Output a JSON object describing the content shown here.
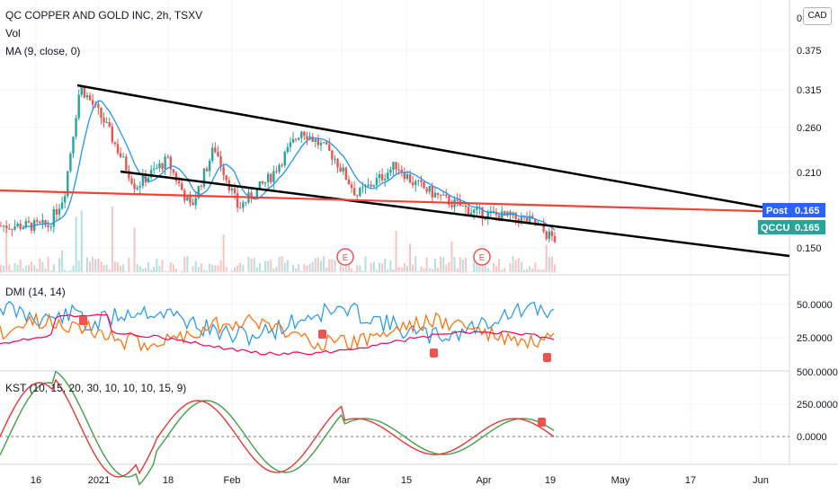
{
  "header": {
    "title": "QC COPPER AND GOLD INC, 2h, TSXV",
    "vol_label": "Vol",
    "ma_label": "MA (9, close, 0)",
    "currency": "CAD",
    "currency_partial_tick": "0."
  },
  "pane_labels": {
    "dmi": "DMI (14, 14)",
    "kst": "KST (10, 15, 20, 30, 10, 10, 10, 15, 9)"
  },
  "badges": {
    "post": {
      "label": "Post",
      "value": "0.165",
      "color": "#2962ff"
    },
    "symbol": {
      "label": "QCCU",
      "value": "0.165",
      "color": "#26a69a"
    }
  },
  "earnings_markers": [
    "E",
    "E"
  ],
  "colors": {
    "up": "#26a69a",
    "down": "#ef5350",
    "ma": "#2196f3",
    "trendline": "#000000",
    "support_line": "#f44336",
    "dmi_plus": "#2196f3",
    "dmi_minus": "#ff6d00",
    "adx": "#f50057",
    "kst": "#e53935",
    "kst_signal": "#43a047"
  },
  "chart_data": [
    {
      "type": "candlestick",
      "title": "QC COPPER AND GOLD INC, 2h, TSXV",
      "xlabel": "",
      "ylabel": "",
      "x_tick_labels": [
        "16",
        "2021",
        "18",
        "Feb",
        "Mar",
        "15",
        "Apr",
        "19",
        "May",
        "17",
        "Jun"
      ],
      "y_tick_labels": [
        "0.375",
        "0.315",
        "0.260",
        "0.210",
        "0.150"
      ],
      "ylim": [
        0.13,
        0.43
      ],
      "price_series_approx": [
        [
          0,
          0.18
        ],
        [
          0.06,
          0.18
        ],
        [
          0.08,
          0.215
        ],
        [
          0.1,
          0.34
        ],
        [
          0.13,
          0.3
        ],
        [
          0.17,
          0.225
        ],
        [
          0.21,
          0.255
        ],
        [
          0.24,
          0.2
        ],
        [
          0.27,
          0.27
        ],
        [
          0.3,
          0.2
        ],
        [
          0.34,
          0.235
        ],
        [
          0.38,
          0.29
        ],
        [
          0.42,
          0.26
        ],
        [
          0.45,
          0.215
        ],
        [
          0.48,
          0.235
        ],
        [
          0.5,
          0.25
        ],
        [
          0.52,
          0.23
        ],
        [
          0.56,
          0.21
        ],
        [
          0.6,
          0.195
        ],
        [
          0.64,
          0.19
        ],
        [
          0.67,
          0.185
        ],
        [
          0.69,
          0.17
        ],
        [
          0.7,
          0.165
        ]
      ],
      "last_price": 0.165,
      "annotations": [
        "Post 0.165",
        "QCCU 0.165",
        "E",
        "E"
      ]
    },
    {
      "type": "line",
      "title": "DMI (14, 14)",
      "y_tick_labels": [
        "50.0000",
        "25.0000"
      ],
      "ylim": [
        0,
        60
      ]
    },
    {
      "type": "line",
      "title": "KST (10, 15, 20, 30, 10, 10, 10, 15, 9)",
      "y_tick_labels": [
        "500.0000",
        "250.0000",
        "0.0000"
      ],
      "ylim": [
        -200,
        500
      ]
    }
  ]
}
